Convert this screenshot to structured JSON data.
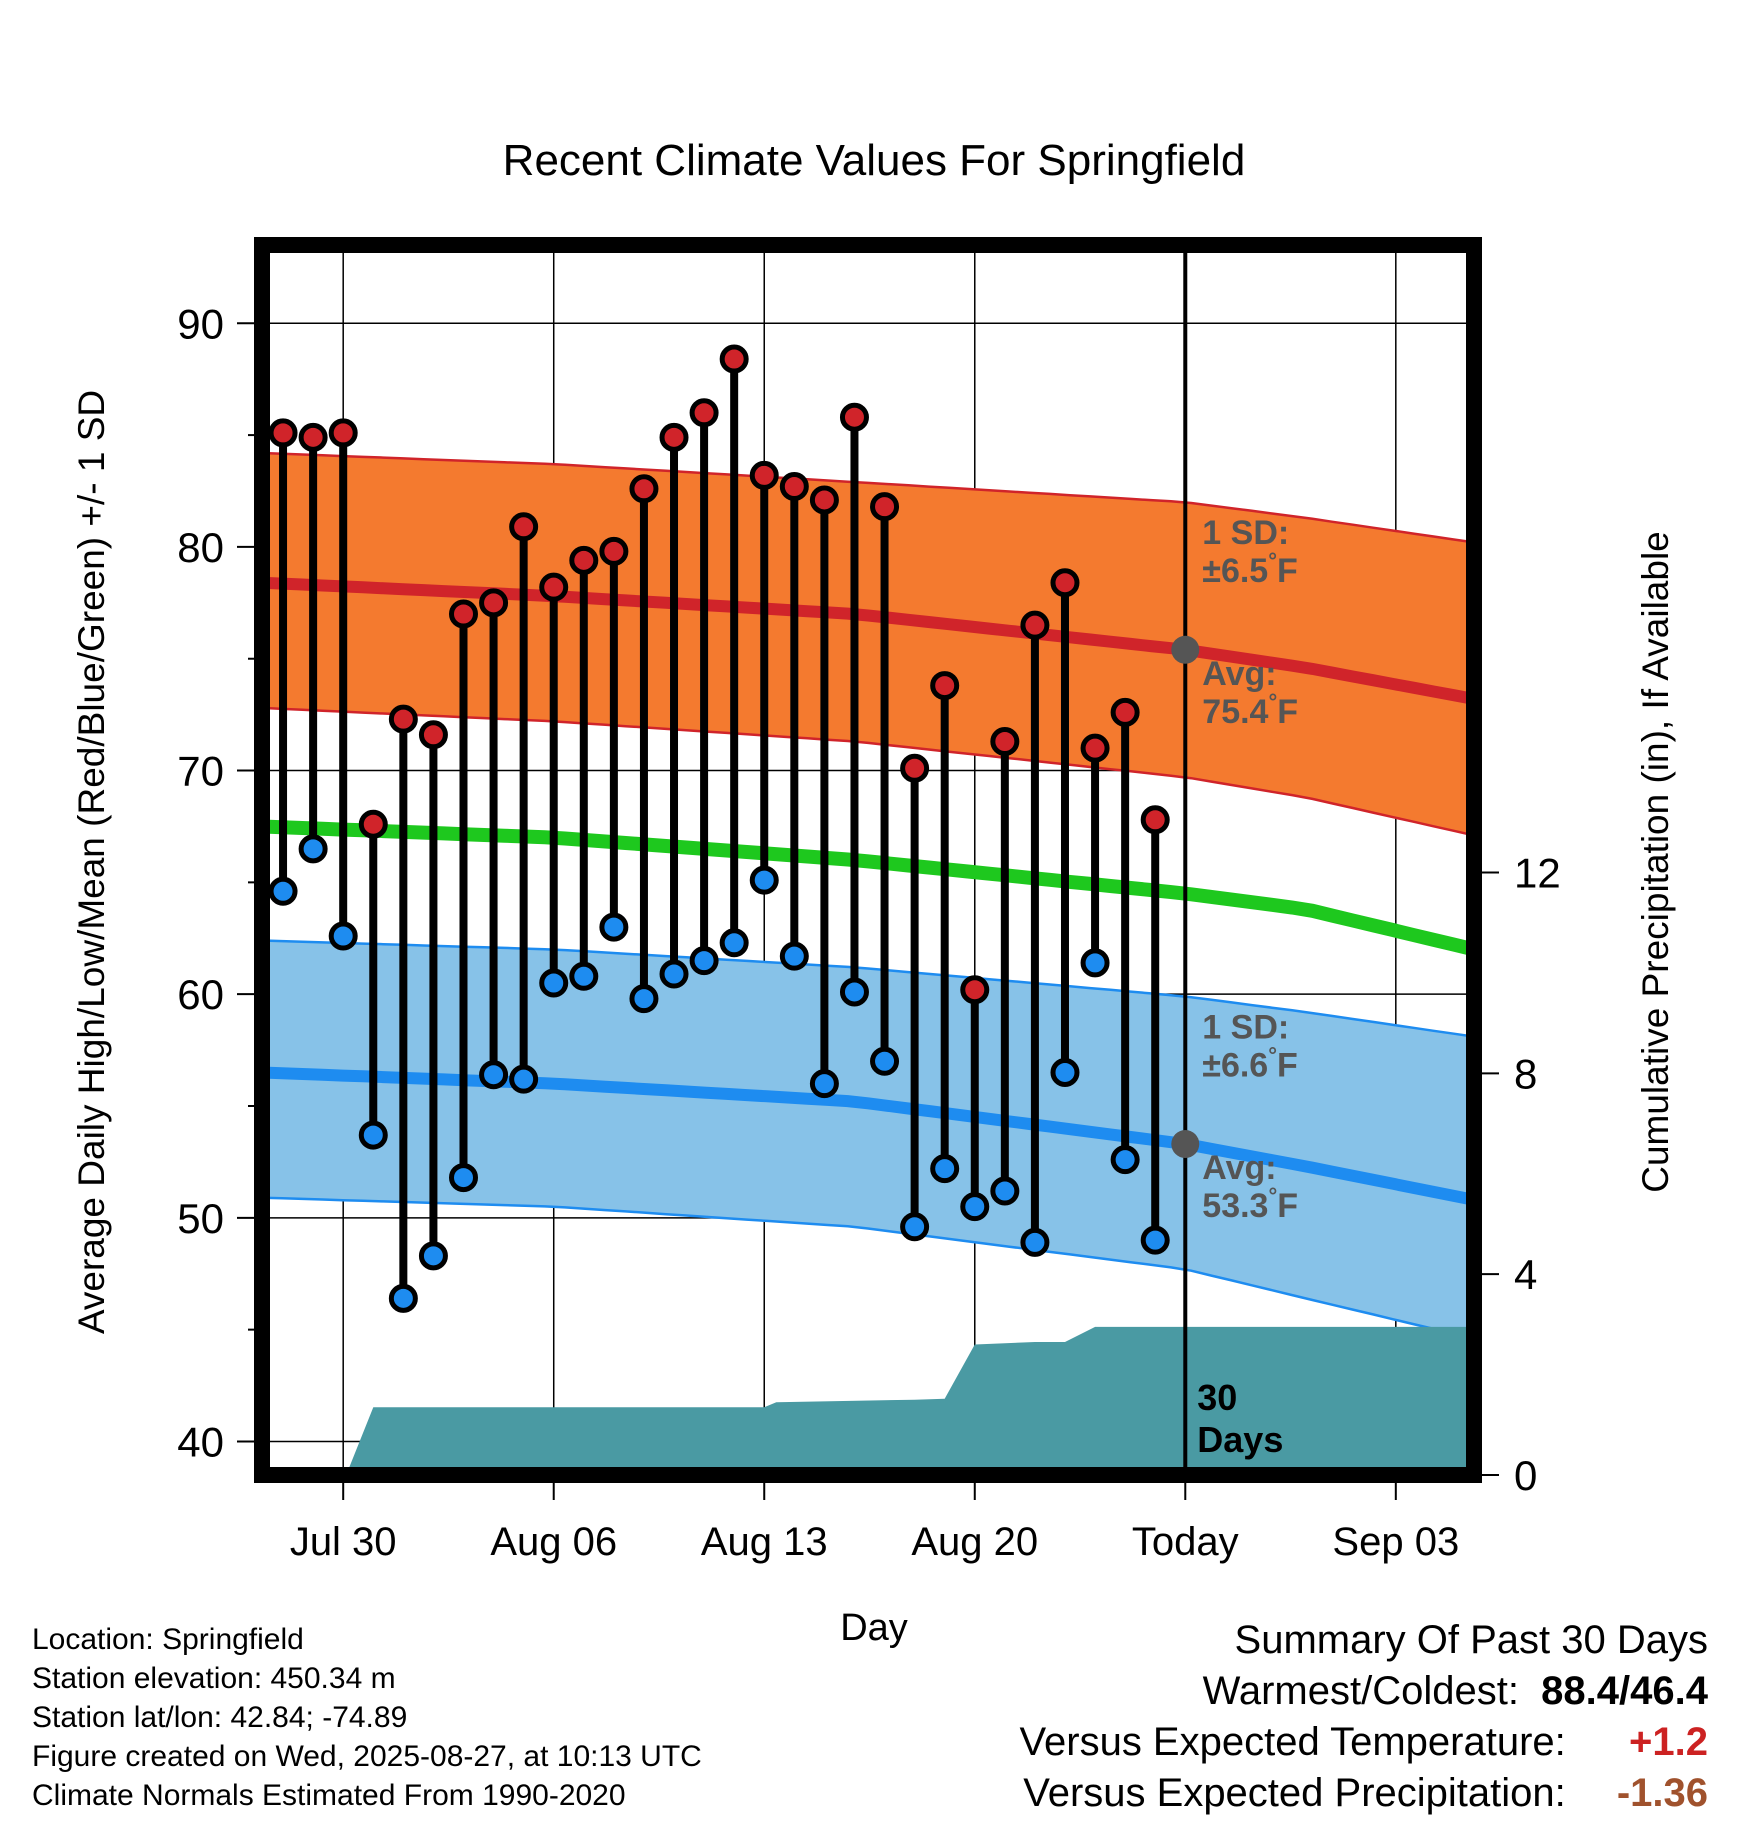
{
  "chart_data": {
    "type": "line",
    "title": "Recent Climate Values For Springfield",
    "xlabel": "Day",
    "ylabel_left": "Average Daily High/Low/Mean (Red/Blue/Green) +/- 1 SD",
    "ylabel_right": "Cumulative Precipitation (in), If Available",
    "ylim_left": [
      38.5,
      93.5
    ],
    "ylim_right": [
      0,
      24.5
    ],
    "left_ticks": [
      40,
      50,
      60,
      70,
      80,
      90
    ],
    "right_ticks": [
      0,
      4,
      8,
      12
    ],
    "x_ticks": [
      {
        "day": 3,
        "label": "Jul 30"
      },
      {
        "day": 10,
        "label": "Aug 06"
      },
      {
        "day": 17,
        "label": "Aug 13"
      },
      {
        "day": 24,
        "label": "Aug 20"
      },
      {
        "day": 31,
        "label": "Today"
      },
      {
        "day": 38,
        "label": "Sep 03"
      }
    ],
    "x_range": [
      0.3,
      40.6
    ],
    "today_day": 31,
    "days": [
      1,
      2,
      3,
      4,
      5,
      6,
      7,
      8,
      9,
      10,
      11,
      12,
      13,
      14,
      15,
      16,
      17,
      18,
      19,
      20,
      21,
      22,
      23,
      24,
      25,
      26,
      27,
      28,
      29,
      30
    ],
    "highs": [
      85.1,
      84.9,
      85.1,
      67.6,
      72.3,
      71.6,
      77.0,
      77.5,
      80.9,
      78.2,
      79.4,
      79.8,
      82.6,
      84.9,
      86.0,
      88.4,
      83.2,
      82.7,
      82.1,
      85.8,
      81.8,
      70.1,
      73.8,
      60.2,
      71.3,
      76.5,
      78.4,
      71.0,
      72.6,
      67.8
    ],
    "lows": [
      64.6,
      66.5,
      62.6,
      53.7,
      46.4,
      48.3,
      51.8,
      56.4,
      56.2,
      60.5,
      60.8,
      63.0,
      59.8,
      60.9,
      61.5,
      62.3,
      65.1,
      61.7,
      56.0,
      60.1,
      57.0,
      49.6,
      52.2,
      50.5,
      51.2,
      48.9,
      56.5,
      61.4,
      52.6,
      49.0
    ],
    "normal_high": {
      "days": [
        0.3,
        10,
        20,
        31,
        35,
        40.6
      ],
      "values": [
        78.4,
        77.8,
        77.0,
        75.4,
        74.6,
        73.2
      ]
    },
    "normal_high_sd_upper": {
      "days": [
        0.3,
        10,
        20,
        31,
        35,
        40.6
      ],
      "values": [
        84.2,
        83.7,
        82.9,
        82.0,
        81.3,
        80.2
      ]
    },
    "normal_high_sd_lower": {
      "days": [
        0.3,
        10,
        20,
        31,
        35,
        40.6
      ],
      "values": [
        72.8,
        72.2,
        71.3,
        69.7,
        68.8,
        67.1
      ]
    },
    "normal_low": {
      "days": [
        0.3,
        10,
        20,
        31,
        35,
        40.6
      ],
      "values": [
        56.5,
        56.0,
        55.2,
        53.3,
        52.3,
        50.8
      ]
    },
    "normal_low_sd_upper": {
      "days": [
        0.3,
        10,
        20,
        31,
        35,
        40.6
      ],
      "values": [
        62.4,
        62.0,
        61.2,
        59.9,
        59.2,
        58.1
      ]
    },
    "normal_low_sd_lower": {
      "days": [
        0.3,
        10,
        20,
        31,
        35,
        40.6
      ],
      "values": [
        50.9,
        50.5,
        49.6,
        47.7,
        46.4,
        44.6
      ]
    },
    "normal_mean": {
      "days": [
        0.3,
        10,
        20,
        31,
        35,
        40.6
      ],
      "values": [
        67.5,
        67.0,
        66.0,
        64.5,
        63.8,
        62.0
      ]
    },
    "precip_cumulative": {
      "days": [
        3.1,
        4.0,
        17.0,
        17.4,
        22.0,
        23.0,
        24.0,
        26.0,
        27.0,
        28.0,
        31.0,
        40.6
      ],
      "values": [
        0.0,
        1.35,
        1.35,
        1.45,
        1.5,
        1.52,
        2.6,
        2.65,
        2.65,
        2.95,
        2.95,
        2.95
      ]
    },
    "annotations": {
      "high_sd": [
        "1 SD:",
        "±6.5",
        "°",
        "F"
      ],
      "high_avg": [
        "Avg:",
        "75.4",
        "°",
        "F"
      ],
      "low_sd": [
        "1 SD:",
        "±6.6",
        "°",
        "F"
      ],
      "low_avg": [
        "Avg:",
        "53.3",
        "°",
        "F"
      ],
      "days_label": [
        "30",
        "Days"
      ]
    },
    "colors": {
      "high_band": "#f47a2f",
      "high_line": "#d0242a",
      "low_band": "#87c2e8",
      "low_line": "#1e8cf0",
      "mean_line": "#1ec81e",
      "precip": "#4a9aa3",
      "high_marker": "#d0242a",
      "low_marker": "#1e8cf0",
      "avg_marker": "#555555",
      "annotation_text": "#555555"
    }
  },
  "footer": {
    "location": "Location: Springfield",
    "elevation": "Station elevation: 450.34 m",
    "latlon": "Station lat/lon: 42.84; -74.89",
    "created": "Figure created on Wed, 2025-08-27, at 10:13 UTC",
    "normals": "Climate Normals Estimated From 1990-2020"
  },
  "summary": {
    "heading": "Summary Of Past 30 Days",
    "warmest_label": "Warmest/Coldest:",
    "warmest_value": "88.4/46.4",
    "temp_label": "Versus Expected Temperature:",
    "temp_value": "+1.2",
    "precip_label": "Versus Expected Precipitation:",
    "precip_value": "-1.36"
  }
}
